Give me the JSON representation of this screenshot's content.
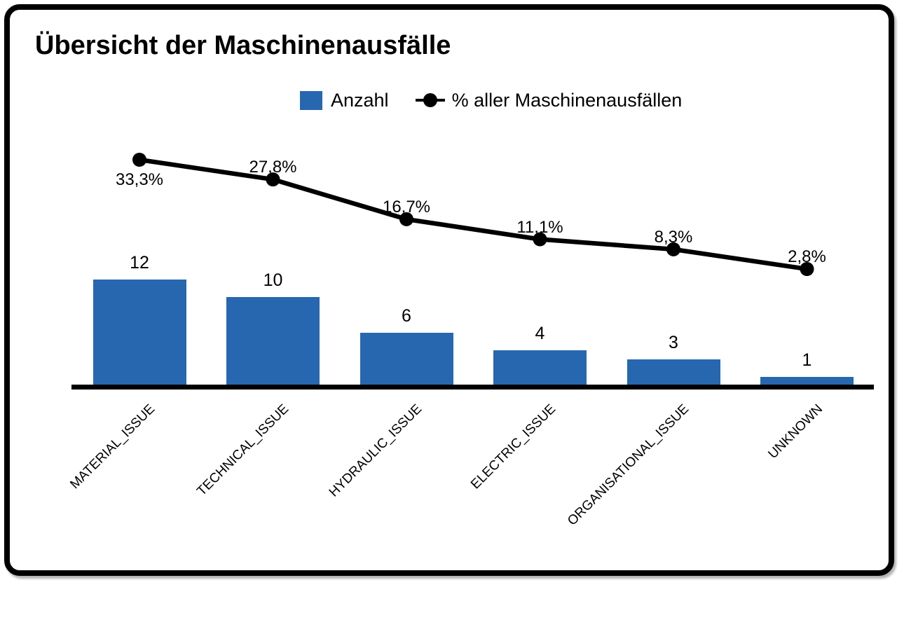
{
  "card": {
    "title": "Übersicht der Maschinenausfälle"
  },
  "legend": {
    "bar_label": "Anzahl",
    "line_label": "% aller Maschinenausfällen"
  },
  "colors": {
    "bar": "#2767B0",
    "line": "#000000",
    "text": "#000000",
    "frame": "#000000",
    "background": "#FFFFFF"
  },
  "chart_data": {
    "type": "bar",
    "subtype": "pareto-combo",
    "title": "Übersicht der Maschinenausfälle",
    "categories": [
      "MATERIAL_ISSUE",
      "TECHNICAL_ISSUE",
      "HYDRAULIC_ISSUE",
      "ELECTRIC_ISSUE",
      "ORGANISATIONAL_ISSUE",
      "UNKNOWN"
    ],
    "series": [
      {
        "name": "Anzahl",
        "type": "bar",
        "values": [
          12,
          10,
          6,
          4,
          3,
          1
        ],
        "value_labels": [
          "12",
          "10",
          "6",
          "4",
          "3",
          "1"
        ],
        "color": "#2767B0"
      },
      {
        "name": "% aller Maschinenausfällen",
        "type": "line",
        "values": [
          33.3,
          27.8,
          16.7,
          11.1,
          8.3,
          2.8
        ],
        "value_labels": [
          "33,3%",
          "27,8%",
          "16,7%",
          "11,1%",
          "8,3%",
          "2,8%"
        ],
        "color": "#000000"
      }
    ],
    "xlabel": "",
    "ylabel": "",
    "ylim": [
      0,
      13
    ],
    "y2lim_percent": [
      0,
      36
    ],
    "grid": false,
    "y_axis_visible": false,
    "x_tick_rotation": -45,
    "legend_position": "top"
  }
}
